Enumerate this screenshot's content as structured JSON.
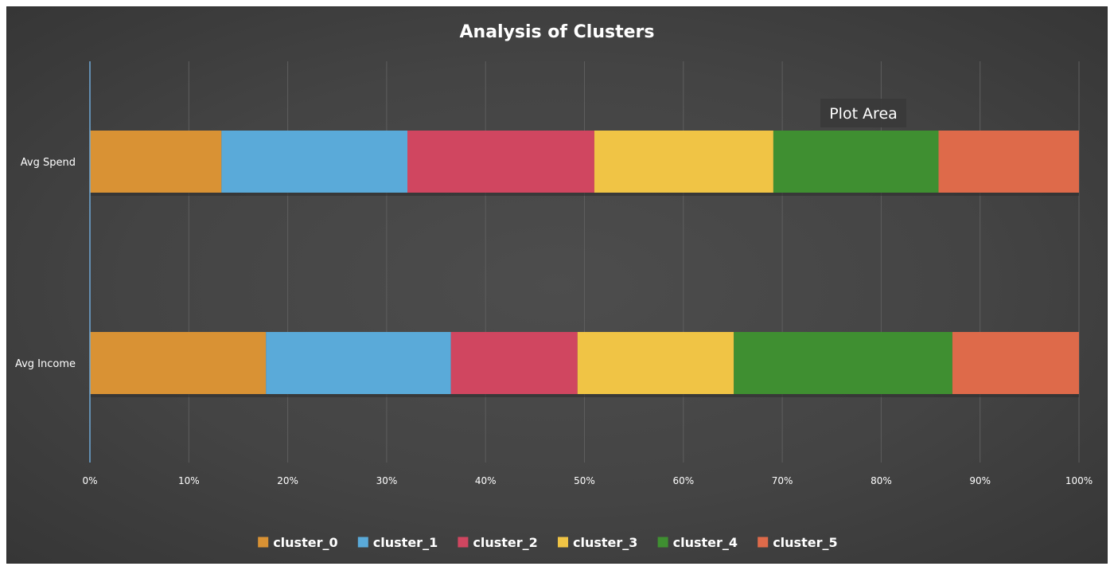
{
  "chart_data": {
    "type": "bar",
    "orientation": "horizontal",
    "stacked": "percent",
    "title": "Analysis of Clusters",
    "categories": [
      "Avg Spend",
      "Avg Income"
    ],
    "x_ticks": [
      "0%",
      "10%",
      "20%",
      "30%",
      "40%",
      "50%",
      "60%",
      "70%",
      "80%",
      "90%",
      "100%"
    ],
    "xlim": [
      0,
      100
    ],
    "grid": true,
    "legend_position": "bottom",
    "series": [
      {
        "name": "cluster_0",
        "color": "#d99234",
        "values": [
          13.3,
          17.8
        ]
      },
      {
        "name": "cluster_1",
        "color": "#5aaad9",
        "values": [
          18.8,
          18.7
        ]
      },
      {
        "name": "cluster_2",
        "color": "#d04660",
        "values": [
          18.9,
          12.8
        ]
      },
      {
        "name": "cluster_3",
        "color": "#f0c445",
        "values": [
          18.1,
          15.8
        ]
      },
      {
        "name": "cluster_4",
        "color": "#3f8f31",
        "values": [
          16.7,
          22.1
        ]
      },
      {
        "name": "cluster_5",
        "color": "#de6a4a",
        "values": [
          14.2,
          12.8
        ]
      }
    ],
    "tooltip": "Plot Area"
  }
}
